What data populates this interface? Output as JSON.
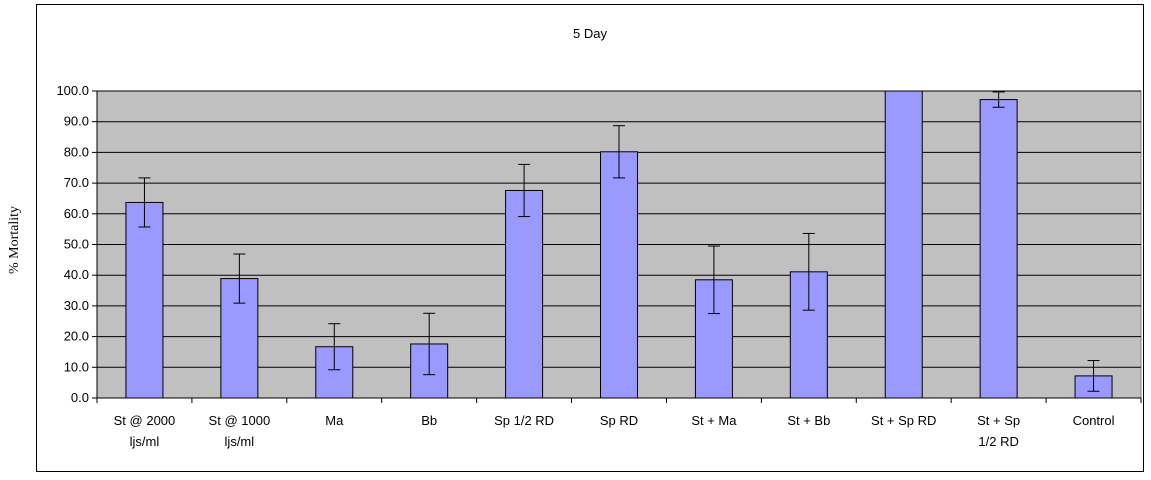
{
  "chart_data": {
    "type": "bar",
    "title": "5 Day",
    "xlabel": "",
    "ylabel": "% Mortality",
    "ylim": [
      0,
      100
    ],
    "yticks": [
      "0.0",
      "10.0",
      "20.0",
      "30.0",
      "40.0",
      "50.0",
      "60.0",
      "70.0",
      "80.0",
      "90.0",
      "100.0"
    ],
    "grid": true,
    "legend": "none",
    "plot_background": "#c0c0c0",
    "bar_color": "#9999ff",
    "categories": [
      [
        "St @ 2000",
        "ljs/ml"
      ],
      [
        "St @ 1000",
        "ljs/ml"
      ],
      [
        "Ma"
      ],
      [
        "Bb"
      ],
      [
        "Sp 1/2 RD"
      ],
      [
        "Sp RD"
      ],
      [
        "St + Ma"
      ],
      [
        "St + Bb"
      ],
      [
        "St + Sp RD"
      ],
      [
        "St + Sp",
        "1/2 RD"
      ],
      [
        "Control"
      ]
    ],
    "values": [
      63.7,
      38.9,
      16.7,
      17.6,
      67.6,
      80.2,
      38.5,
      41.1,
      100.0,
      97.2,
      7.2
    ],
    "errors": [
      8.0,
      8.0,
      7.5,
      10.0,
      8.5,
      8.5,
      11.0,
      12.5,
      0.0,
      2.5,
      5.0
    ]
  }
}
